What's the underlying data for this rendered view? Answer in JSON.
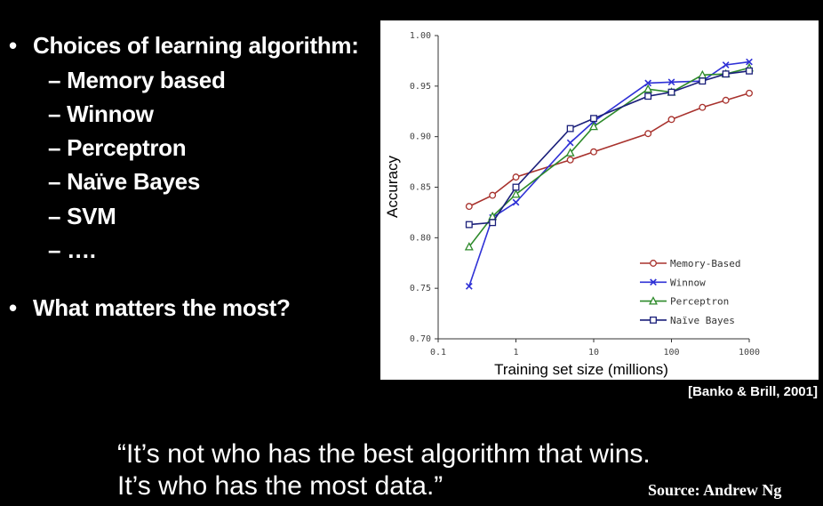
{
  "slide": {
    "bullet1": "Choices of learning algorithm:",
    "sub_items": [
      "– Memory based",
      "– Winnow",
      "– Perceptron",
      "– Naïve Bayes",
      "– SVM",
      "– …."
    ],
    "bullet2": "What matters the most?",
    "bullet_marker": "•",
    "citation": "[Banko & Brill, 2001]",
    "quote_line1": "“It’s not who has the best algorithm that wins.",
    "quote_line2": "It’s who has the most data.”",
    "source": "Source: Andrew Ng"
  },
  "chart_data": {
    "type": "line",
    "xlabel": "Training set size (millions)",
    "ylabel": "Accuracy",
    "xscale": "log",
    "xlim": [
      0.1,
      1000
    ],
    "ylim": [
      0.7,
      1.0
    ],
    "xticks": [
      "0.1",
      "1",
      "10",
      "100",
      "1000"
    ],
    "yticks": [
      "0.70",
      "0.75",
      "0.80",
      "0.85",
      "0.90",
      "0.95",
      "1.00"
    ],
    "grid": false,
    "legend_position": "bottom-right",
    "x": [
      0.25,
      0.5,
      1,
      5,
      10,
      50,
      100,
      250,
      500,
      1000
    ],
    "series": [
      {
        "name": "Memory-Based",
        "color": "#a8322d",
        "marker": "circle",
        "values": [
          0.831,
          0.842,
          0.86,
          0.877,
          0.885,
          0.903,
          0.917,
          0.929,
          0.936,
          0.943
        ]
      },
      {
        "name": "Winnow",
        "color": "#2f31d6",
        "marker": "x",
        "values": [
          0.752,
          0.82,
          0.835,
          0.894,
          0.915,
          0.953,
          0.954,
          0.955,
          0.971,
          0.974
        ]
      },
      {
        "name": "Perceptron",
        "color": "#2d8a2a",
        "marker": "triangle",
        "values": [
          0.791,
          0.821,
          0.843,
          0.884,
          0.91,
          0.947,
          0.944,
          0.961,
          0.962,
          0.968
        ]
      },
      {
        "name": "Naïve Bayes",
        "color": "#1a1f7a",
        "marker": "square",
        "values": [
          0.813,
          0.815,
          0.85,
          0.908,
          0.918,
          0.94,
          0.944,
          0.955,
          0.962,
          0.965
        ]
      }
    ]
  }
}
